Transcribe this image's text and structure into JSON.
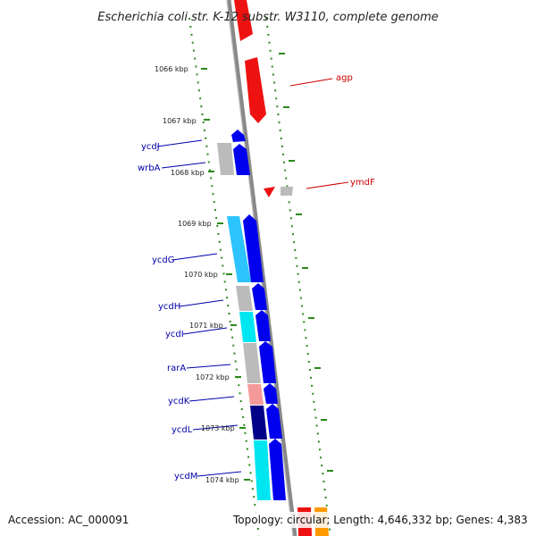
{
  "title": "Escherichia coli str. K-12 substr. W3110, complete genome",
  "accession": "Accession: AC_000091",
  "topology": "Topology: circular; Length: 4,646,332 bp; Genes: 4,383",
  "colors": {
    "forward": "#ee1111",
    "reverse": "#0000ee",
    "reverse_label": "#0000aa",
    "forward_label": "#cc0000",
    "unknown": "#bbbbbb",
    "cyan": "#00e6f0",
    "lightblue": "#2cc4ff",
    "pink": "#f59a9a",
    "navy": "#000088",
    "orange": "#ff9900",
    "backbone": "#888888",
    "ruler": "#2a8a1a"
  },
  "ticks": [
    {
      "label": "1066 kbp"
    },
    {
      "label": "1067 kbp"
    },
    {
      "label": "1068 kbp"
    },
    {
      "label": "1069 kbp"
    },
    {
      "label": "1070 kbp"
    },
    {
      "label": "1071 kbp"
    },
    {
      "label": "1072 kbp"
    },
    {
      "label": "1073 kbp"
    },
    {
      "label": "1074 kbp"
    }
  ],
  "genes": {
    "reverse": [
      {
        "name": "ycdJ"
      },
      {
        "name": "wrbA"
      },
      {
        "name": "ycdG"
      },
      {
        "name": "ycdH"
      },
      {
        "name": "ycdI"
      },
      {
        "name": "rarA"
      },
      {
        "name": "ycdK"
      },
      {
        "name": "ycdL"
      },
      {
        "name": "ycdM"
      }
    ],
    "forward": [
      {
        "name": "agp"
      },
      {
        "name": "ymdF"
      }
    ]
  }
}
